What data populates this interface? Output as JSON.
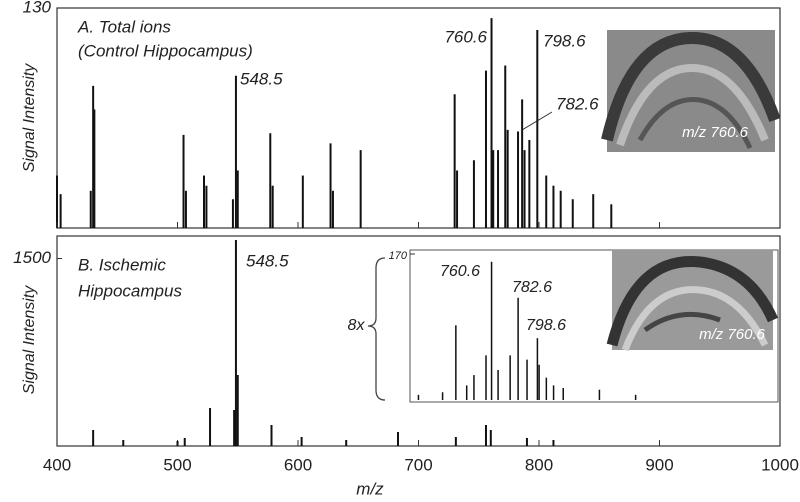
{
  "chart_data": [
    {
      "type": "stem",
      "title": [
        "A. Total ions",
        "(Control Hippocampus)"
      ],
      "y_label": "Signal Intensity",
      "color": "#111111",
      "xlim": [
        400,
        1000
      ],
      "ylim": [
        0,
        130
      ],
      "yticks": [
        130
      ],
      "x": [
        400,
        403,
        428,
        430,
        431,
        505,
        507,
        522,
        524,
        546,
        548.5,
        550,
        577,
        579,
        604,
        627,
        629,
        652,
        730,
        732,
        746,
        756,
        760.6,
        762,
        766,
        772,
        774,
        782.6,
        786,
        788,
        792,
        798.6,
        806,
        812,
        818,
        828,
        845,
        860
      ],
      "values": [
        31,
        20,
        22,
        84,
        70,
        55,
        22,
        31,
        25,
        17,
        90,
        34,
        56,
        25,
        31,
        50,
        22,
        46,
        79,
        34,
        40,
        93,
        124,
        46,
        46,
        96,
        58,
        57,
        76,
        46,
        52,
        117,
        31,
        25,
        22,
        17,
        20,
        14
      ],
      "annotations": [
        548.5,
        760.6,
        798.6,
        782.6
      ],
      "image_label": "m/z 760.6"
    },
    {
      "type": "stem",
      "title": [
        "B. Ischemic",
        "Hippocampus"
      ],
      "y_label": "Signal Intensity",
      "x_label": "m/z",
      "color": "#111111",
      "xlim": [
        400,
        1000
      ],
      "xticks": [
        400,
        500,
        600,
        700,
        800,
        900,
        1000
      ],
      "ylim": [
        0,
        1680
      ],
      "yticks": [
        1500
      ],
      "x": [
        430,
        455,
        500,
        506,
        527,
        547,
        548.5,
        550,
        578,
        603,
        640,
        683,
        731,
        756,
        760,
        790,
        812
      ],
      "values": [
        128,
        48,
        40,
        64,
        304,
        288,
        1648,
        568,
        168,
        72,
        48,
        112,
        72,
        168,
        128,
        64,
        48
      ],
      "annotations": [
        548.5
      ],
      "image_label": "m/z 760.6"
    },
    {
      "type": "stem",
      "scale_label": "8x",
      "color": "#111111",
      "xlim": [
        693,
        998
      ],
      "ylim": [
        0,
        170
      ],
      "yticks": [
        170
      ],
      "x": [
        700,
        720,
        731,
        740,
        746,
        756,
        760.6,
        766,
        776,
        782.6,
        790,
        798.6,
        800,
        806,
        812,
        820,
        850,
        880
      ],
      "values": [
        6,
        9,
        87,
        17,
        29,
        52,
        161,
        35,
        52,
        119,
        47,
        72,
        41,
        26,
        17,
        14,
        12,
        6
      ],
      "annotations": [
        760.6,
        782.6,
        798.6
      ]
    }
  ]
}
